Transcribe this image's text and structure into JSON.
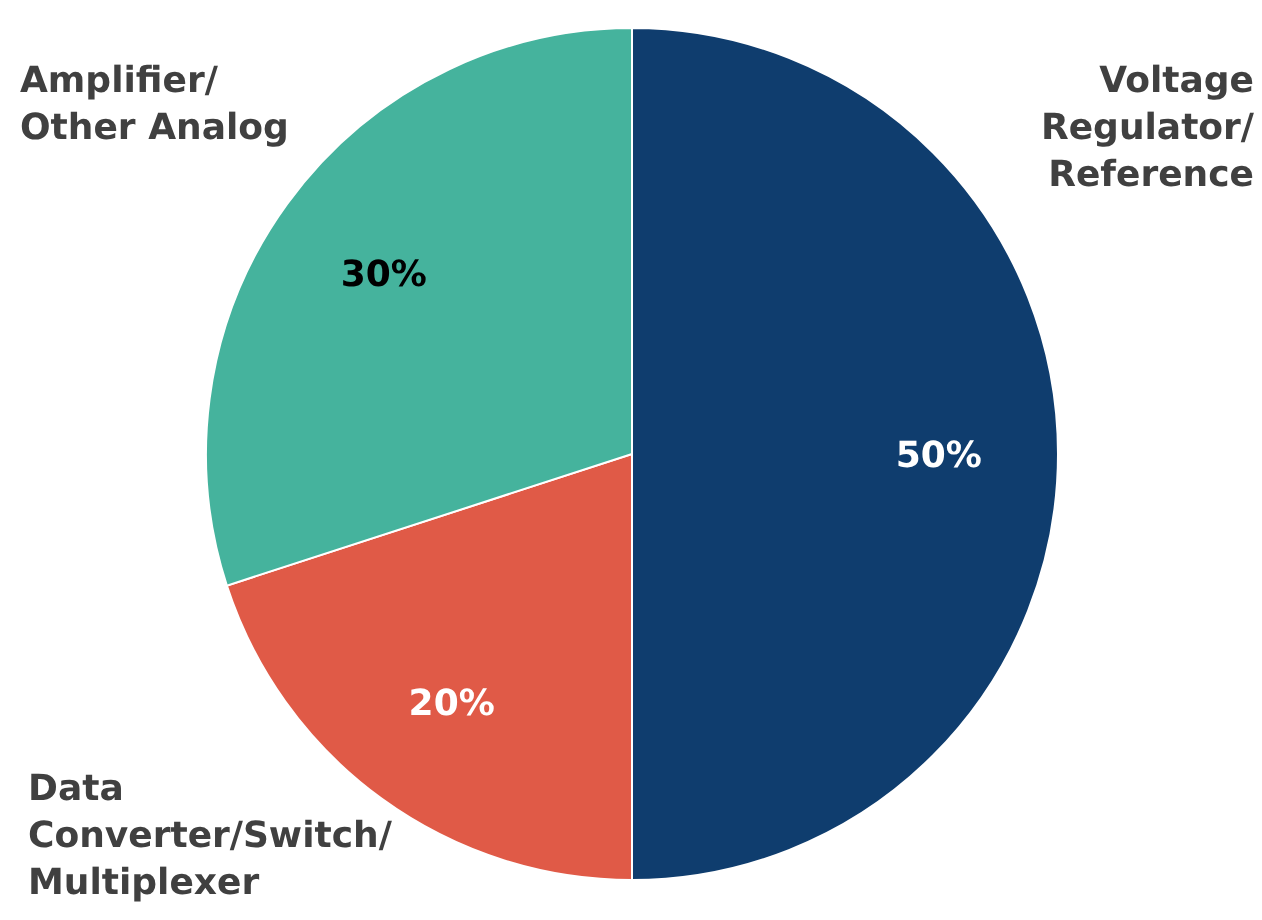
{
  "chart_data": {
    "type": "pie",
    "categories": [
      "Voltage\nRegulator/\nReference",
      "Data\nConverter/Switch/\nMultiplexer",
      "Amplifier/\nOther Analog"
    ],
    "values": [
      50,
      20,
      30
    ],
    "colors": [
      "#0f3d6e",
      "#e05a47",
      "#45b39d"
    ],
    "value_labels": [
      "50%",
      "20%",
      "30%"
    ]
  }
}
